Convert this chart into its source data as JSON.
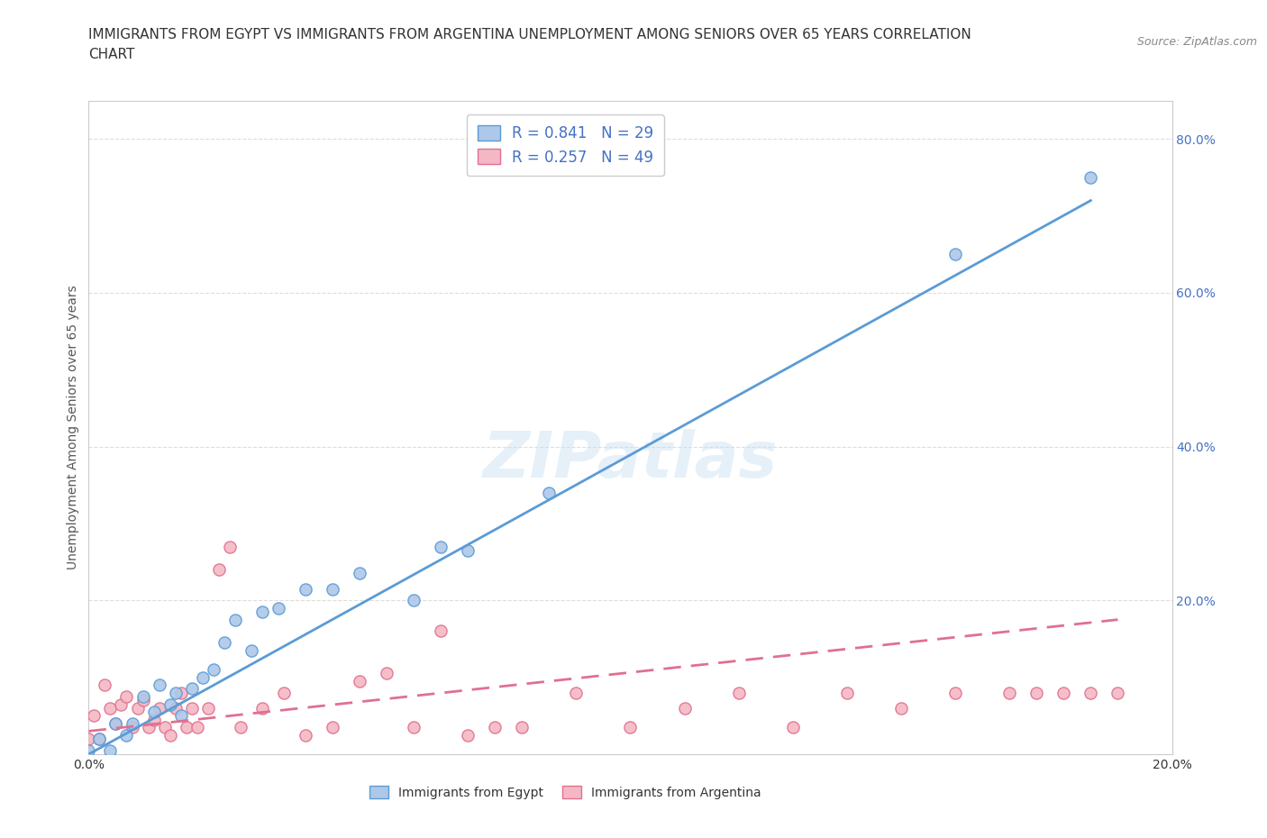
{
  "title_line1": "IMMIGRANTS FROM EGYPT VS IMMIGRANTS FROM ARGENTINA UNEMPLOYMENT AMONG SENIORS OVER 65 YEARS CORRELATION",
  "title_line2": "CHART",
  "source_text": "Source: ZipAtlas.com",
  "ylabel": "Unemployment Among Seniors over 65 years",
  "xlim": [
    0.0,
    0.2
  ],
  "ylim": [
    0.0,
    0.85
  ],
  "x_ticks": [
    0.0,
    0.05,
    0.1,
    0.15,
    0.2
  ],
  "x_tick_labels": [
    "0.0%",
    "",
    "",
    "",
    "20.0%"
  ],
  "y_ticks": [
    0.0,
    0.2,
    0.4,
    0.6,
    0.8
  ],
  "y_tick_labels_right": [
    "",
    "20.0%",
    "40.0%",
    "60.0%",
    "80.0%"
  ],
  "egypt_color": "#adc8e8",
  "egypt_edge_color": "#5b9bd5",
  "argentina_color": "#f4b8c4",
  "argentina_edge_color": "#e07090",
  "egypt_R": 0.841,
  "egypt_N": 29,
  "argentina_R": 0.257,
  "argentina_N": 49,
  "egypt_line_x": [
    0.0,
    0.185
  ],
  "egypt_line_y": [
    0.0,
    0.72
  ],
  "argentina_line_x": [
    0.0,
    0.19
  ],
  "argentina_line_y": [
    0.03,
    0.175
  ],
  "egypt_scatter_x": [
    0.0,
    0.002,
    0.004,
    0.005,
    0.007,
    0.008,
    0.01,
    0.012,
    0.013,
    0.015,
    0.016,
    0.017,
    0.019,
    0.021,
    0.023,
    0.025,
    0.027,
    0.03,
    0.032,
    0.035,
    0.04,
    0.045,
    0.05,
    0.06,
    0.065,
    0.07,
    0.085,
    0.16,
    0.185
  ],
  "egypt_scatter_y": [
    0.005,
    0.02,
    0.005,
    0.04,
    0.025,
    0.04,
    0.075,
    0.055,
    0.09,
    0.065,
    0.08,
    0.05,
    0.085,
    0.1,
    0.11,
    0.145,
    0.175,
    0.135,
    0.185,
    0.19,
    0.215,
    0.215,
    0.235,
    0.2,
    0.27,
    0.265,
    0.34,
    0.65,
    0.75
  ],
  "argentina_scatter_x": [
    0.0,
    0.001,
    0.002,
    0.003,
    0.004,
    0.005,
    0.006,
    0.007,
    0.008,
    0.009,
    0.01,
    0.011,
    0.012,
    0.013,
    0.014,
    0.015,
    0.016,
    0.017,
    0.018,
    0.019,
    0.02,
    0.022,
    0.024,
    0.026,
    0.028,
    0.032,
    0.036,
    0.04,
    0.045,
    0.05,
    0.055,
    0.06,
    0.065,
    0.07,
    0.075,
    0.08,
    0.09,
    0.1,
    0.11,
    0.12,
    0.13,
    0.14,
    0.15,
    0.16,
    0.17,
    0.175,
    0.18,
    0.185,
    0.19
  ],
  "argentina_scatter_y": [
    0.02,
    0.05,
    0.02,
    0.09,
    0.06,
    0.04,
    0.065,
    0.075,
    0.035,
    0.06,
    0.07,
    0.035,
    0.045,
    0.06,
    0.035,
    0.025,
    0.06,
    0.08,
    0.035,
    0.06,
    0.035,
    0.06,
    0.24,
    0.27,
    0.035,
    0.06,
    0.08,
    0.025,
    0.035,
    0.095,
    0.105,
    0.035,
    0.16,
    0.025,
    0.035,
    0.035,
    0.08,
    0.035,
    0.06,
    0.08,
    0.035,
    0.08,
    0.06,
    0.08,
    0.08,
    0.08,
    0.08,
    0.08,
    0.08
  ],
  "watermark_text": "ZIPatlas",
  "background_color": "#ffffff",
  "grid_color": "#dddddd",
  "title_fontsize": 11,
  "axis_label_fontsize": 10,
  "tick_fontsize": 10,
  "legend_fontsize": 12,
  "right_axis_color": "#4472c4"
}
